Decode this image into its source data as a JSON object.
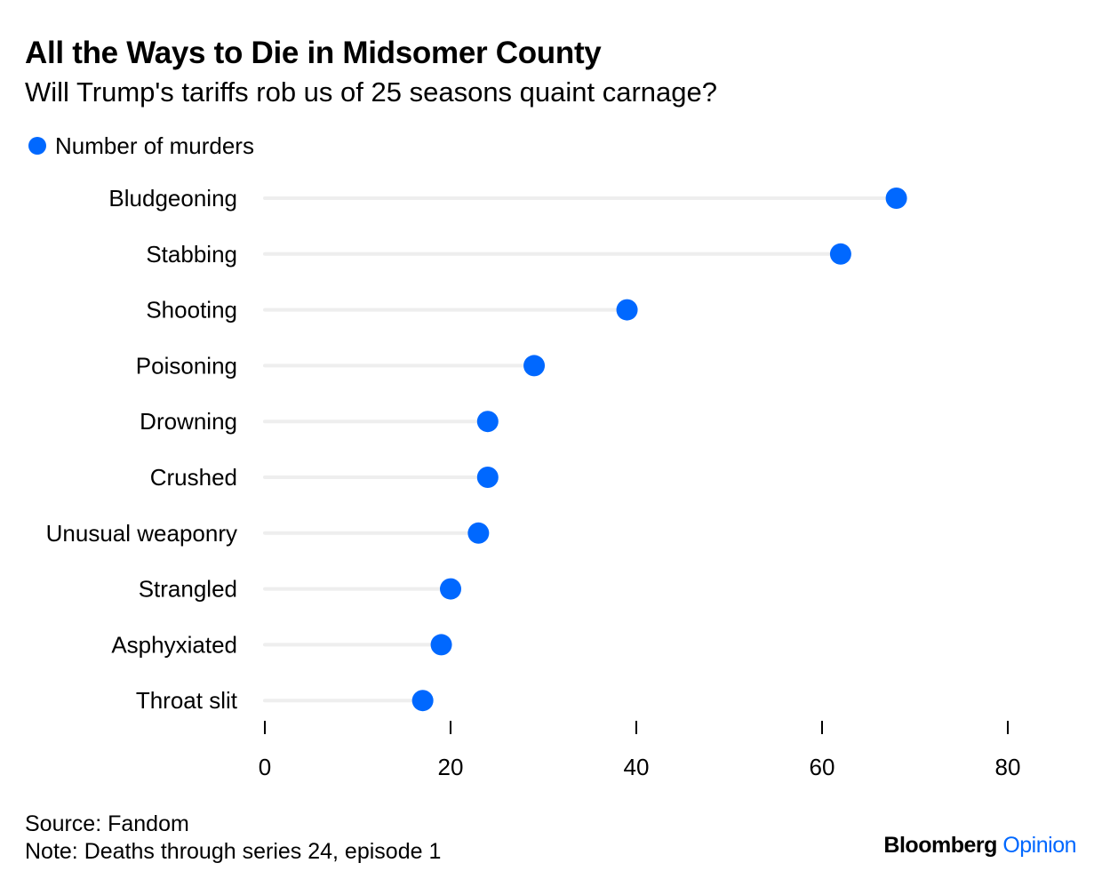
{
  "header": {
    "title": "All the Ways to Die in Midsomer County",
    "subtitle": "Will Trump's tariffs rob us of 25 seasons quaint carnage?"
  },
  "chart_data": {
    "type": "dot",
    "title": "All the Ways to Die in Midsomer County",
    "subtitle": "Will Trump's tariffs rob us of 25 seasons quaint carnage?",
    "categories": [
      "Bludgeoning",
      "Stabbing",
      "Shooting",
      "Poisoning",
      "Drowning",
      "Crushed",
      "Unusual weaponry",
      "Strangled",
      "Asphyxiated",
      "Throat slit"
    ],
    "series": [
      {
        "name": "Number of murders",
        "values": [
          68,
          62,
          39,
          29,
          24,
          24,
          23,
          20,
          19,
          17
        ],
        "color": "#0068ff"
      }
    ],
    "xlim": [
      0,
      80
    ],
    "xticks": [
      0,
      20,
      40,
      60,
      80
    ],
    "xlabel": "",
    "ylabel": "",
    "grid": false,
    "legend": "top-left",
    "track_color": "#eeeeee"
  },
  "footer": {
    "source": "Source: Fandom",
    "note": "Note: Deaths through series 24, episode 1"
  },
  "brand": {
    "name": "Bloomberg",
    "section": "Opinion",
    "section_color": "#0068ff"
  },
  "colors": {
    "accent": "#0068ff",
    "text": "#000000",
    "track": "#eeeeee"
  }
}
